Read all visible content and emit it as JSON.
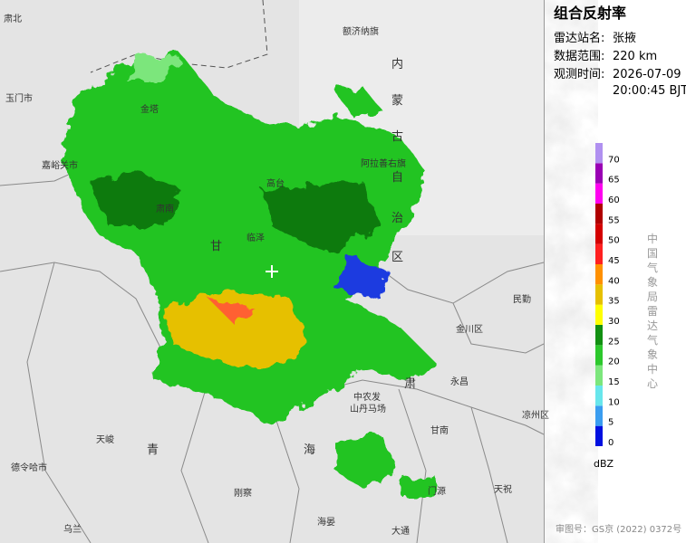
{
  "panel": {
    "title": "组合反射率",
    "rows": [
      [
        "雷达站名:",
        "张掖"
      ],
      [
        "数据范围:",
        "220 km"
      ],
      [
        "观测时间:",
        "2026-07-09"
      ]
    ],
    "time2": "20:00:45 BJT",
    "credit": "中国气象局雷达气象中心",
    "approval": "审图号：GS京 (2022) 0372号"
  },
  "legend": {
    "unit": "dBZ",
    "ticks": [
      0,
      5,
      10,
      15,
      20,
      25,
      30,
      35,
      40,
      45,
      50,
      55,
      60,
      65,
      70
    ],
    "colors": [
      "#0010e0",
      "#3a9df0",
      "#68e6ec",
      "#7ce67c",
      "#2cc82c",
      "#129012",
      "#ffff00",
      "#e6c000",
      "#ff9000",
      "#ff2020",
      "#d40000",
      "#b00000",
      "#ff00f0",
      "#9a00b4",
      "#b090f0"
    ]
  },
  "map_labels": [
    "肃北",
    "额济纳旗",
    "内",
    "蒙",
    "古",
    "自",
    "治",
    "区",
    "玉门市",
    "金塔",
    "嘉峪关市",
    "阿拉善右旗",
    "甘",
    "临泽",
    "肃南",
    "民勤",
    "金川区",
    "永昌",
    "肃",
    "中农发",
    "山丹马场",
    "天峻",
    "青",
    "海",
    "刚察",
    "德令哈市",
    "乌兰",
    "海晏",
    "大通",
    "门源",
    "天祝",
    "凉州区",
    "甘南",
    "高台"
  ]
}
